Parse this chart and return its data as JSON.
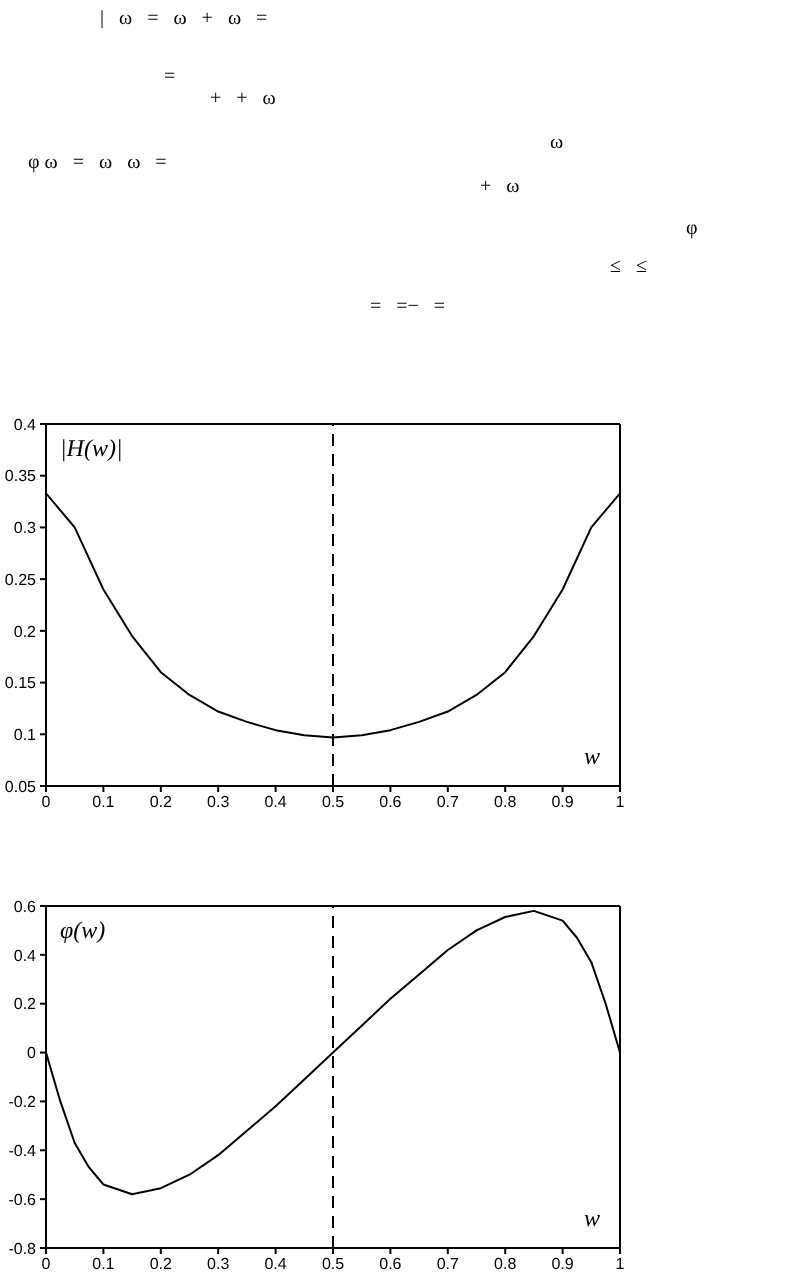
{
  "chart_data": [
    {
      "type": "line",
      "ylabel": "|H(w)|",
      "xlabel": "w",
      "annotations": [
        "|   ω   =   ω   +   ω   =",
        "=",
        "+   +   ω",
        "ω",
        "φ ω   =   ω   ω   =",
        "+   ω",
        "φ",
        "≤   ≤",
        "=   =−   ="
      ],
      "x": [
        0,
        0.05,
        0.1,
        0.15,
        0.2,
        0.25,
        0.3,
        0.35,
        0.4,
        0.45,
        0.5,
        0.55,
        0.6,
        0.65,
        0.7,
        0.75,
        0.8,
        0.85,
        0.9,
        0.95,
        1
      ],
      "series": [
        {
          "color": "#000000",
          "values": [
            0.333,
            0.3,
            0.24,
            0.195,
            0.16,
            0.138,
            0.122,
            0.112,
            0.104,
            0.099,
            0.097,
            0.099,
            0.104,
            0.112,
            0.122,
            0.138,
            0.16,
            0.195,
            0.24,
            0.3,
            0.333
          ]
        }
      ],
      "xlim": [
        0,
        1
      ],
      "xticks": [
        0,
        0.1,
        0.2,
        0.3,
        0.4,
        0.5,
        0.6,
        0.7,
        0.8,
        0.9,
        1
      ],
      "ylim": [
        0.05,
        0.4
      ],
      "yticks": [
        0.05,
        0.1,
        0.15,
        0.2,
        0.25,
        0.3,
        0.35,
        0.4
      ],
      "ref_lines": [
        {
          "axis": "x",
          "value": 0.5,
          "line_style": "dashed",
          "color": "#000000"
        }
      ]
    },
    {
      "type": "line",
      "ylabel": "φ(w)",
      "xlabel": "w",
      "x": [
        0,
        0.025,
        0.05,
        0.075,
        0.1,
        0.15,
        0.2,
        0.25,
        0.3,
        0.35,
        0.4,
        0.45,
        0.5,
        0.55,
        0.6,
        0.65,
        0.7,
        0.75,
        0.8,
        0.85,
        0.9,
        0.925,
        0.95,
        0.975,
        1
      ],
      "series": [
        {
          "color": "#000000",
          "values": [
            0,
            -0.2,
            -0.37,
            -0.47,
            -0.54,
            -0.58,
            -0.555,
            -0.5,
            -0.42,
            -0.32,
            -0.22,
            -0.11,
            0,
            0.11,
            0.22,
            0.32,
            0.42,
            0.5,
            0.555,
            0.58,
            0.54,
            0.47,
            0.37,
            0.2,
            0
          ]
        }
      ],
      "xlim": [
        0,
        1
      ],
      "xticks": [
        0,
        0.1,
        0.2,
        0.3,
        0.4,
        0.5,
        0.6,
        0.7,
        0.8,
        0.9,
        1
      ],
      "ylim": [
        -0.8,
        0.6
      ],
      "yticks": [
        -0.8,
        -0.6,
        -0.4,
        -0.2,
        0,
        0.2,
        0.4,
        0.6
      ],
      "ref_lines": [
        {
          "axis": "x",
          "value": 0.5,
          "line_style": "dashed",
          "color": "#000000"
        }
      ]
    }
  ]
}
